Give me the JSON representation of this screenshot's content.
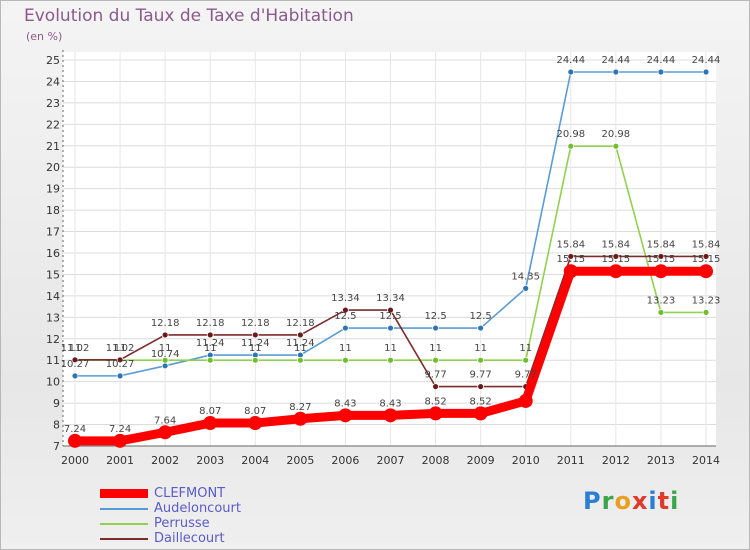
{
  "title": "Evolution du Taux de Taxe d'Habitation",
  "unit_label": "(en %)",
  "logo": {
    "text": "Proxiti",
    "colors": [
      "#2a7fd4",
      "#3aa54a",
      "#e8a020",
      "#e03a2a",
      "#2a7fd4",
      "#e03a2a",
      "#3aa54a"
    ]
  },
  "chart_data": {
    "type": "line",
    "title": "Evolution du Taux de Taxe d'Habitation",
    "ylabel": "(en %)",
    "xlabel": "",
    "ylim": [
      7,
      25
    ],
    "yticks": [
      7,
      8,
      9,
      10,
      11,
      12,
      13,
      14,
      15,
      16,
      17,
      18,
      19,
      20,
      21,
      22,
      23,
      24,
      25
    ],
    "grid": true,
    "legend_position": "bottom-left",
    "categories": [
      "2000",
      "2001",
      "2002",
      "2003",
      "2004",
      "2005",
      "2006",
      "2007",
      "2008",
      "2009",
      "2010",
      "2011",
      "2012",
      "2013",
      "2014"
    ],
    "series": [
      {
        "name": "CLEFMONT",
        "color": "#ff0000",
        "marker_color": "#ff0000",
        "thick": true,
        "values": [
          7.24,
          7.24,
          7.64,
          8.07,
          8.07,
          8.27,
          8.43,
          8.43,
          8.52,
          8.52,
          9.1,
          15.15,
          15.15,
          15.15,
          15.15
        ],
        "labels": [
          "7.24",
          "7.24",
          "7.64",
          "8.07",
          "8.07",
          "8.27",
          "8.43",
          "8.43",
          "8.52",
          "8.52",
          "",
          "15.15",
          "15.15",
          "15.15",
          "15.15"
        ]
      },
      {
        "name": "Audeloncourt",
        "color": "#5b9bd5",
        "marker_color": "#2e75b6",
        "values": [
          10.27,
          10.27,
          10.74,
          11.24,
          11.24,
          11.24,
          12.5,
          12.5,
          12.5,
          12.5,
          14.35,
          24.44,
          24.44,
          24.44,
          24.44
        ],
        "labels": [
          "10.27",
          "10.27",
          "10.74",
          "11.24",
          "11.24",
          "11.24",
          "12.5",
          "12.5",
          "12.5",
          "12.5",
          "14.35",
          "24.44",
          "24.44",
          "24.44",
          "24.44"
        ]
      },
      {
        "name": "Perrusse",
        "color": "#92d050",
        "marker_color": "#6fbf2c",
        "values": [
          11,
          11,
          11,
          11,
          11,
          11,
          11,
          11,
          11,
          11,
          11,
          20.98,
          20.98,
          13.23,
          13.23
        ],
        "labels": [
          "11",
          "11",
          "11",
          "11",
          "11",
          "11",
          "11",
          "11",
          "11",
          "11",
          "11",
          "20.98",
          "20.98",
          "13.23",
          "13.23"
        ]
      },
      {
        "name": "Daillecourt",
        "color": "#7b2c2c",
        "marker_color": "#6b1a1a",
        "values": [
          11.02,
          11.02,
          12.18,
          12.18,
          12.18,
          12.18,
          13.34,
          13.34,
          9.77,
          9.77,
          9.77,
          15.84,
          15.84,
          15.84,
          15.84
        ],
        "labels": [
          "11.02",
          "11.02",
          "12.18",
          "12.18",
          "12.18",
          "12.18",
          "13.34",
          "13.34",
          "9.77",
          "9.77",
          "9.77",
          "15.84",
          "15.84",
          "15.84",
          "15.84"
        ]
      }
    ]
  }
}
